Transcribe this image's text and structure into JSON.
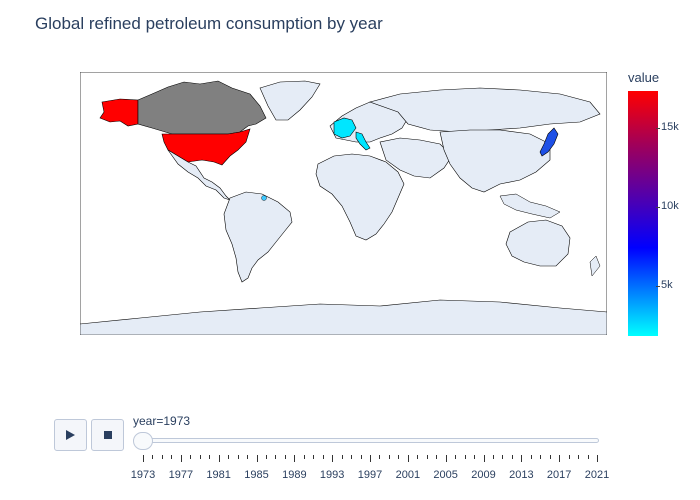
{
  "title": "Global refined petroleum consumption by year",
  "colorbar": {
    "title": "value",
    "ticks": [
      "15k",
      "10k",
      "5k"
    ]
  },
  "colorscale": [
    "#00ffff",
    "#0080ff",
    "#0000ff",
    "#4b00b4",
    "#a0005a",
    "#ff0000"
  ],
  "map_colors": {
    "land": "#e5ecf6",
    "ocean": "#ffffff",
    "missing": "#808080",
    "border": "#000000"
  },
  "countries": [
    {
      "name": "United States",
      "color": "#ff0000"
    },
    {
      "name": "Canada",
      "color": "#808080"
    },
    {
      "name": "Greenland",
      "color": "#e5ecf6"
    },
    {
      "name": "Japan",
      "color": "#1e50e6"
    },
    {
      "name": "Italy",
      "color": "#00e6ff"
    },
    {
      "name": "Western Europe",
      "color": "#00e6ff"
    }
  ],
  "slider": {
    "current_label": "year=1973",
    "years": [
      "1973",
      "1977",
      "1981",
      "1985",
      "1989",
      "1993",
      "1997",
      "2001",
      "2005",
      "2009",
      "2013",
      "2017",
      "2021"
    ],
    "selected_index": 0
  },
  "controls": {
    "play_icon": "play-icon",
    "stop_icon": "stop-icon"
  }
}
